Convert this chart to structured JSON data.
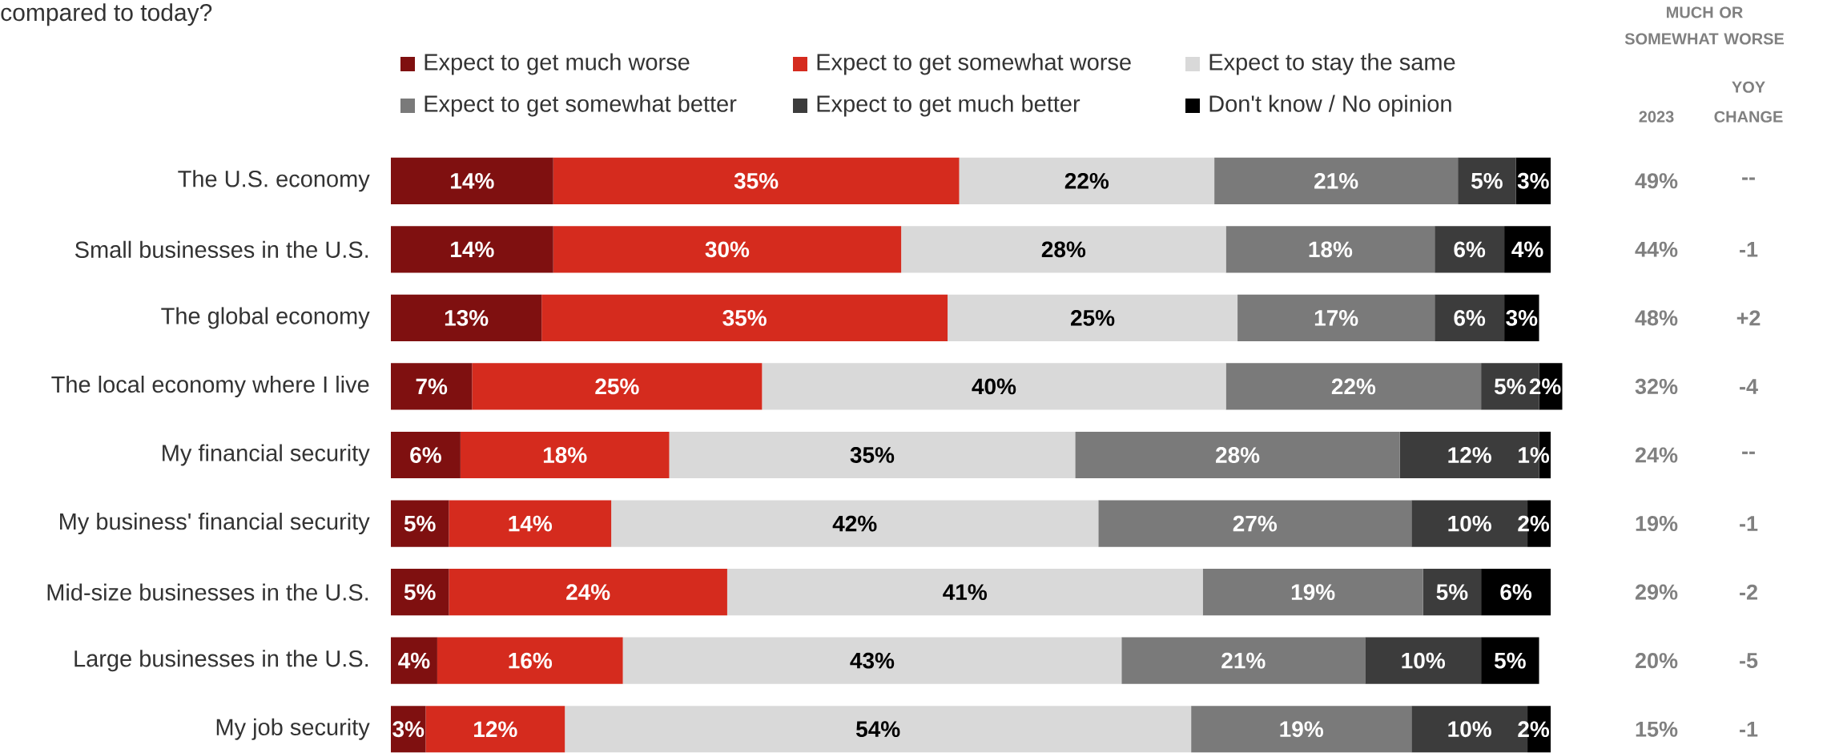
{
  "chart_data": [
    {
      "type": "bar",
      "orientation": "horizontal",
      "stacked": true,
      "title": "compared to today?",
      "legend": "top",
      "tick_labels": "y",
      "categories": [
        "The U.S. economy",
        "Small businesses in the U.S.",
        "The global economy",
        "The local economy where I live",
        "My financial security",
        "My business' financial security",
        "Mid-size businesses in the U.S.",
        "Large businesses in the U.S.",
        "My job security"
      ],
      "series": [
        {
          "name": "Expect to get much worse",
          "color": "#7f1010",
          "values": [
            14,
            14,
            13,
            7,
            6,
            5,
            5,
            4,
            3
          ],
          "value_labels": [
            "14%",
            "14%",
            "13%",
            "7%",
            "6%",
            "5%",
            "5%",
            "4%",
            "3%"
          ]
        },
        {
          "name": "Expect to get somewhat worse",
          "color": "#d52b1e",
          "values": [
            35,
            30,
            35,
            25,
            18,
            14,
            24,
            16,
            12
          ],
          "value_labels": [
            "35%",
            "30%",
            "35%",
            "25%",
            "18%",
            "14%",
            "24%",
            "16%",
            "12%"
          ]
        },
        {
          "name": "Expect to stay the same",
          "color": "#d9d9d9",
          "values": [
            22,
            28,
            25,
            40,
            35,
            42,
            41,
            43,
            54
          ],
          "value_labels": [
            "22%",
            "28%",
            "25%",
            "40%",
            "35%",
            "42%",
            "41%",
            "43%",
            "54%"
          ]
        },
        {
          "name": "Expect to get somewhat better",
          "color": "#7a7a7a",
          "values": [
            21,
            18,
            17,
            22,
            28,
            27,
            19,
            21,
            19
          ],
          "value_labels": [
            "21%",
            "18%",
            "17%",
            "22%",
            "28%",
            "27%",
            "19%",
            "21%",
            "19%"
          ]
        },
        {
          "name": "Expect to get much better",
          "color": "#3c3c3c",
          "values": [
            5,
            6,
            6,
            5,
            12,
            10,
            5,
            10,
            10
          ],
          "value_labels": [
            "5%",
            "6%",
            "6%",
            "5%",
            "12%",
            "10%",
            "5%",
            "10%",
            "10%"
          ]
        },
        {
          "name": "Don't know / No opinion",
          "color": "#000000",
          "values": [
            3,
            4,
            3,
            2,
            1,
            2,
            6,
            5,
            2
          ],
          "value_labels": [
            "3%",
            "4%",
            "3%",
            "2%",
            "1%",
            "2%",
            "6%",
            "5%",
            "2%"
          ]
        }
      ]
    },
    {
      "type": "other",
      "title": "MUCH OR SOMEWHAT WORSE",
      "categories": [
        "2023",
        "YOY CHANGE"
      ],
      "cell_labels": [
        [
          "49%",
          "--"
        ],
        [
          "44%",
          "-1"
        ],
        [
          "48%",
          "+2"
        ],
        [
          "32%",
          "-4"
        ],
        [
          "24%",
          "--"
        ],
        [
          "19%",
          "-1"
        ],
        [
          "29%",
          "-2"
        ],
        [
          "20%",
          "-5"
        ],
        [
          "15%",
          "-1"
        ]
      ]
    }
  ]
}
